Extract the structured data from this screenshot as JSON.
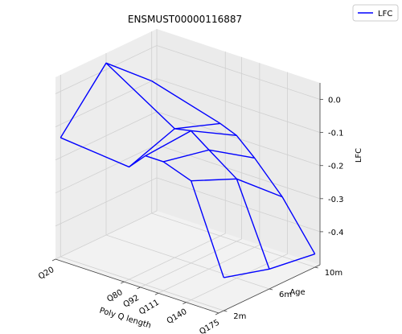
{
  "chart_data": {
    "type": "line",
    "projection": "3d-wireframe",
    "title": "ENSMUST00000116887",
    "xlabel": "Poly Q length",
    "ylabel": "Age",
    "zlabel": "LFC",
    "x_ticks": [
      "Q20",
      "Q80",
      "Q92",
      "Q111",
      "Q140",
      "Q175"
    ],
    "y_ticks": [
      "2m",
      "6m",
      "10m"
    ],
    "z_ticks": [
      "0.0",
      "-0.1",
      "-0.2",
      "-0.3",
      "-0.4"
    ],
    "zlim": [
      -0.45,
      0.02
    ],
    "legend": {
      "label": "LFC",
      "position": "top-right"
    },
    "grid": true,
    "series": [
      {
        "name": "LFC",
        "color": "#0000ff",
        "values": [
          [
            -0.14,
            0.02,
            -0.1
          ],
          [
            -0.16,
            -0.11,
            -0.16
          ],
          [
            -0.11,
            -0.1,
            -0.18
          ],
          [
            -0.11,
            -0.14,
            -0.23
          ],
          [
            -0.14,
            -0.2,
            -0.32
          ],
          [
            -0.4,
            -0.44,
            -0.46
          ]
        ]
      }
    ]
  },
  "colors": {
    "line": "#0000ff",
    "pane": "#f2f2f2",
    "grid": "#d0d0d0"
  }
}
